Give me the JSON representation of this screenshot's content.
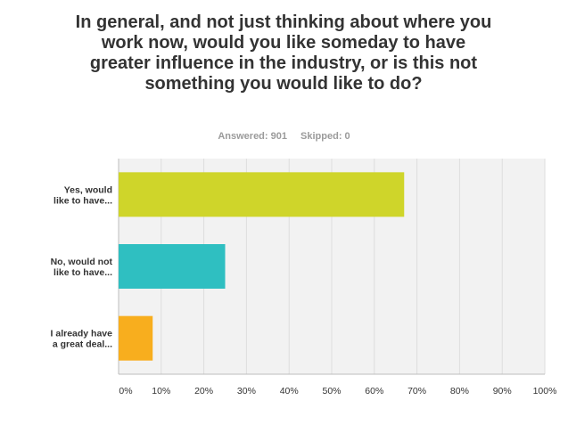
{
  "stats": {
    "answered": "Answered: 901",
    "skipped": "Skipped: 0"
  },
  "chart_data": {
    "type": "bar",
    "orientation": "horizontal",
    "title": "In general, and not just thinking about where you work now, would you like someday to have greater influence in the industry, or is this not something you would like to do?",
    "categories": [
      [
        "Yes, would",
        "like to have..."
      ],
      [
        "No, would not",
        "like to have..."
      ],
      [
        "I already have",
        "a great deal..."
      ]
    ],
    "values": [
      67,
      25,
      8
    ],
    "colors": [
      "#cfd52a",
      "#2fbfc1",
      "#f8ae1e"
    ],
    "xlim": [
      0,
      100
    ],
    "xticks": [
      "0%",
      "10%",
      "20%",
      "30%",
      "40%",
      "50%",
      "60%",
      "70%",
      "80%",
      "90%",
      "100%"
    ],
    "grid": true,
    "legend": "none"
  }
}
